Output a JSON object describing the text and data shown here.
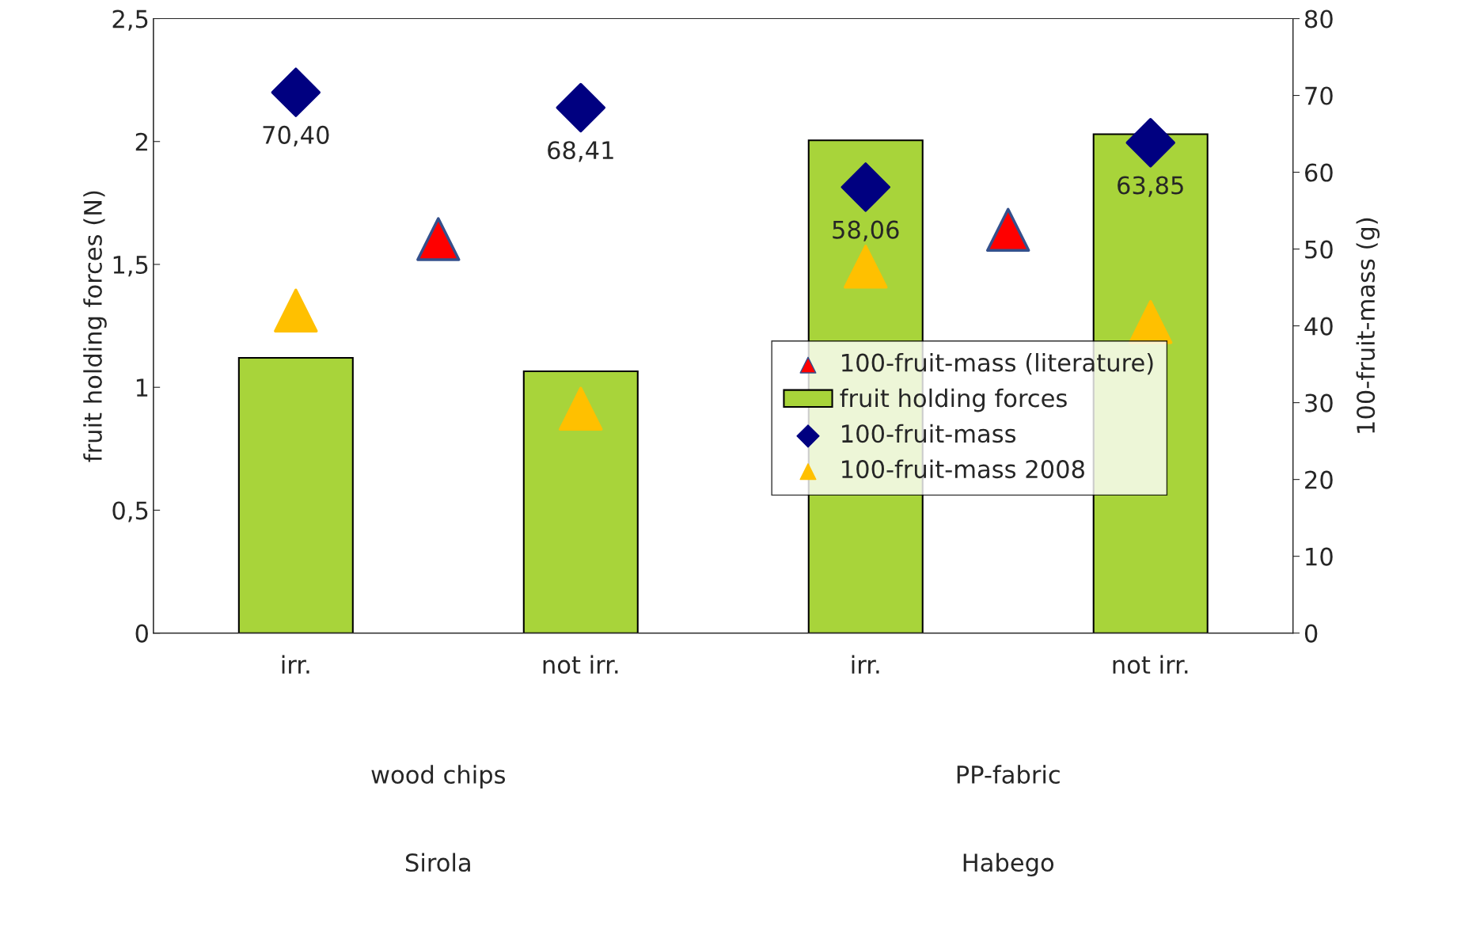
{
  "chart_data": {
    "type": "bar",
    "ylabel": "fruit holding forces (N)",
    "y2label": "100-fruit-mass (g)",
    "categories": [
      "irr.",
      null,
      "not irr.",
      null,
      "irr.",
      null,
      "not irr."
    ],
    "series": [
      {
        "name": "100-fruit-mass (literature)",
        "type": "scatter",
        "axis": "y2",
        "color": "#ff0000",
        "marker": "triangle",
        "values": [
          null,
          51.3,
          null,
          null,
          null,
          52.5,
          null
        ]
      },
      {
        "name": "fruit holding forces",
        "color": "#a8d43a",
        "values": [
          1.12,
          null,
          1.065,
          null,
          2.005,
          null,
          2.03
        ]
      },
      {
        "name": "100-fruit-mass",
        "type": "scatter",
        "axis": "y2",
        "color": "#000080",
        "marker": "diamond",
        "values": [
          70.4,
          null,
          68.41,
          null,
          58.06,
          null,
          63.85
        ],
        "value_labels": [
          "70,40",
          null,
          "68,41",
          null,
          "58,06",
          null,
          "63,85"
        ]
      },
      {
        "name": "100-fruit-mass 2008",
        "type": "scatter",
        "axis": "y2",
        "color": "#ffc000",
        "marker": "triangle",
        "values": [
          42,
          null,
          29.2,
          null,
          47.7,
          null,
          40.5
        ]
      }
    ],
    "ylim": [
      0,
      2.5
    ],
    "yticks": [
      0,
      {
        "value": 0.5,
        "label": "0,5"
      },
      1,
      {
        "value": 1.5,
        "label": "1,5"
      },
      2,
      {
        "value": 2.5,
        "label": "2,5"
      }
    ],
    "y2lim": [
      0,
      80
    ],
    "y2ticks": [
      0,
      10,
      20,
      30,
      40,
      50,
      60,
      70,
      80
    ],
    "annotations": [
      "wood chips",
      "PP-fabric",
      "Sirola",
      "Habego"
    ],
    "legend": "right",
    "grid": false
  }
}
